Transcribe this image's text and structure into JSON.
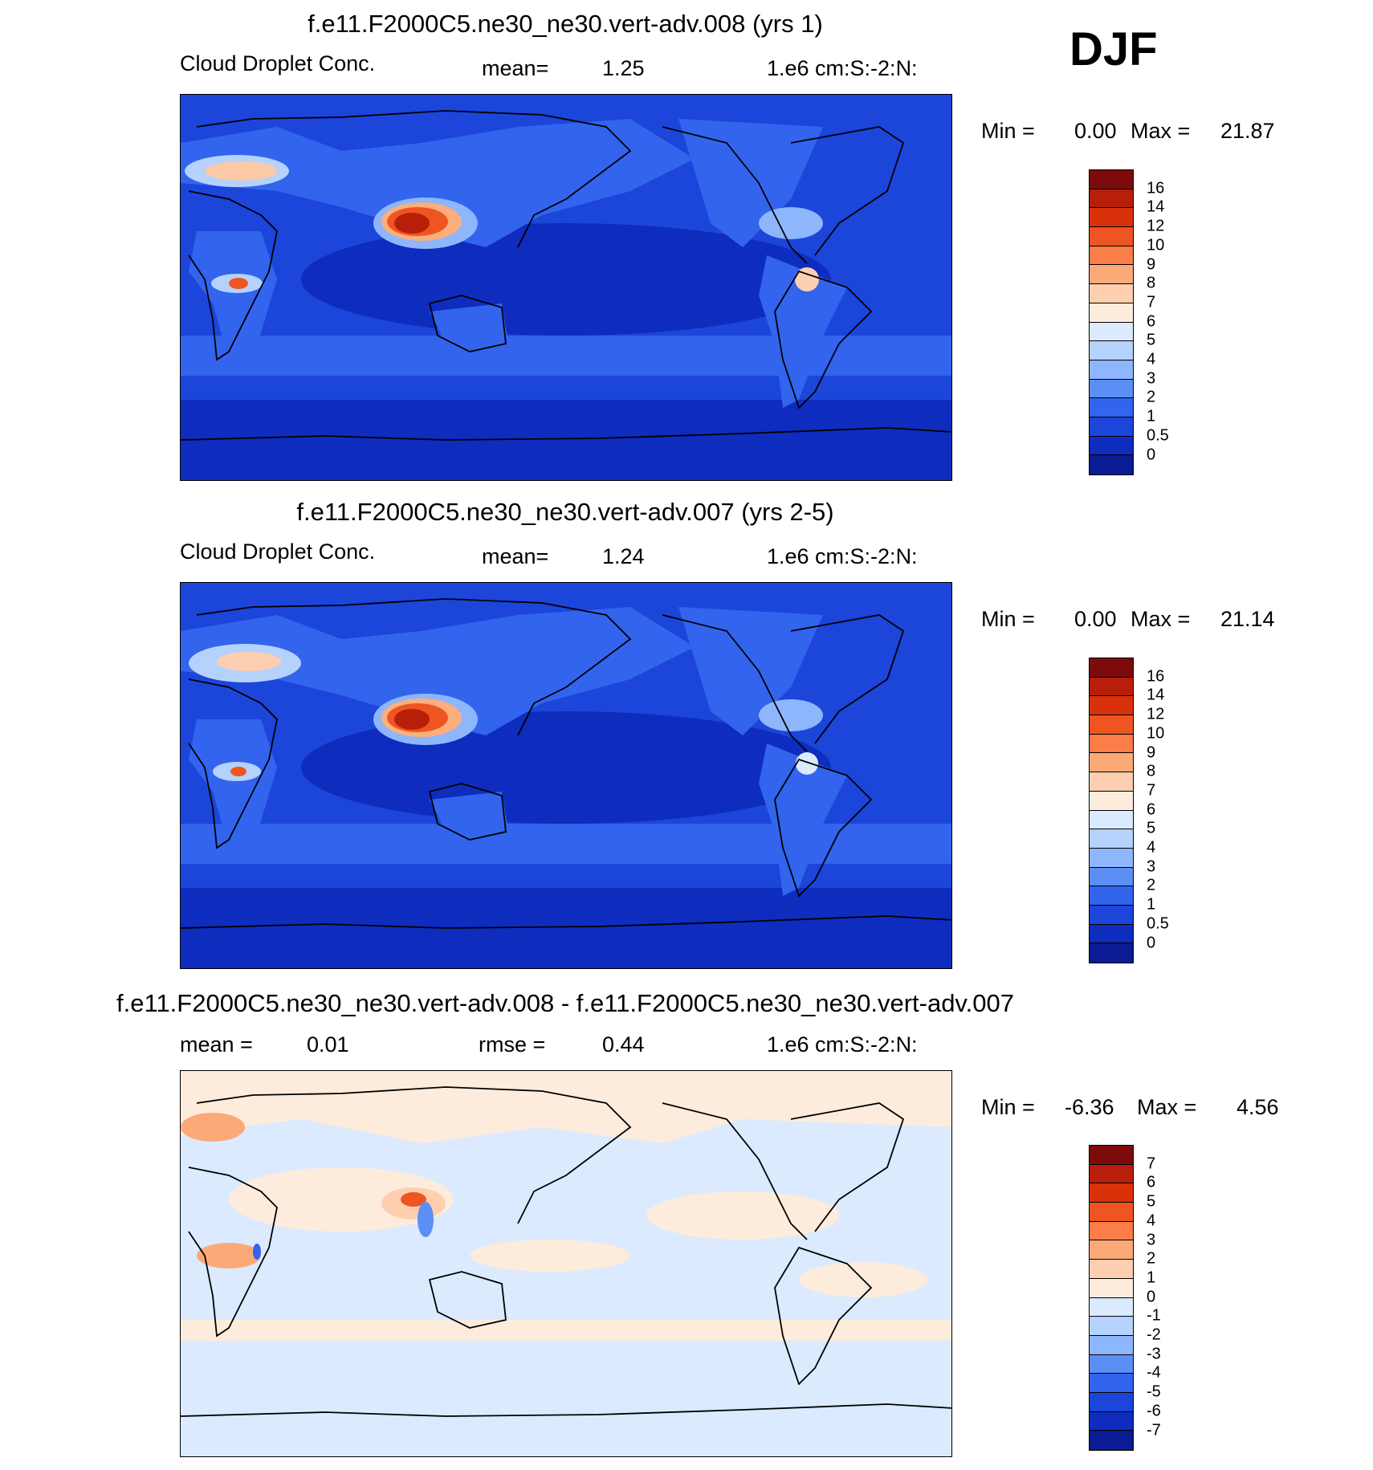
{
  "season": "DJF",
  "panels": [
    {
      "title": "f.e11.F2000C5.ne30_ne30.vert-adv.008 (yrs 1)",
      "left_label": "Cloud Droplet Conc.",
      "stat1_label": "mean=",
      "stat1_value": "1.25",
      "units": "1.e6 cm:S:-2:N:",
      "min_label": "Min =",
      "min_value": "0.00",
      "max_label": "Max =",
      "max_value": "21.87",
      "colorbar": {
        "colors": [
          "#7d0b0b",
          "#b81f0a",
          "#d9320a",
          "#ee5521",
          "#fb7d47",
          "#fca978",
          "#fdcfb0",
          "#fdecdc",
          "#dbeafe",
          "#b5d2fd",
          "#8db6fc",
          "#5c8ff6",
          "#3264ee",
          "#1c45d9",
          "#0e2cbd",
          "#0a1b93"
        ],
        "labels": [
          "16",
          "14",
          "12",
          "10",
          "9",
          "8",
          "7",
          "6",
          "5",
          "4",
          "3",
          "2",
          "1",
          "0.5",
          "0"
        ]
      }
    },
    {
      "title": "f.e11.F2000C5.ne30_ne30.vert-adv.007 (yrs 2-5)",
      "left_label": "Cloud Droplet Conc.",
      "stat1_label": "mean=",
      "stat1_value": "1.24",
      "units": "1.e6 cm:S:-2:N:",
      "min_label": "Min =",
      "min_value": "0.00",
      "max_label": "Max =",
      "max_value": "21.14",
      "colorbar": {
        "colors": [
          "#7d0b0b",
          "#b81f0a",
          "#d9320a",
          "#ee5521",
          "#fb7d47",
          "#fca978",
          "#fdcfb0",
          "#fdecdc",
          "#dbeafe",
          "#b5d2fd",
          "#8db6fc",
          "#5c8ff6",
          "#3264ee",
          "#1c45d9",
          "#0e2cbd",
          "#0a1b93"
        ],
        "labels": [
          "16",
          "14",
          "12",
          "10",
          "9",
          "8",
          "7",
          "6",
          "5",
          "4",
          "3",
          "2",
          "1",
          "0.5",
          "0"
        ]
      }
    },
    {
      "title": "f.e11.F2000C5.ne30_ne30.vert-adv.008 - f.e11.F2000C5.ne30_ne30.vert-adv.007",
      "stat0_label": "mean =",
      "stat0_value": "0.01",
      "stat1_label": "rmse =",
      "stat1_value": "0.44",
      "units": "1.e6 cm:S:-2:N:",
      "min_label": "Min =",
      "min_value": "-6.36",
      "max_label": "Max =",
      "max_value": "4.56",
      "colorbar": {
        "colors": [
          "#7d0b0b",
          "#b81f0a",
          "#d9320a",
          "#ee5521",
          "#fb7d47",
          "#fca978",
          "#fdcfb0",
          "#fdecdc",
          "#dbeafe",
          "#b5d2fd",
          "#8db6fc",
          "#5c8ff6",
          "#3264ee",
          "#1c45d9",
          "#0e2cbd",
          "#0a1b93"
        ],
        "labels": [
          "7",
          "6",
          "5",
          "4",
          "3",
          "2",
          "1",
          "0",
          "-1",
          "-2",
          "-3",
          "-4",
          "-5",
          "-6",
          "-7"
        ]
      }
    }
  ]
}
